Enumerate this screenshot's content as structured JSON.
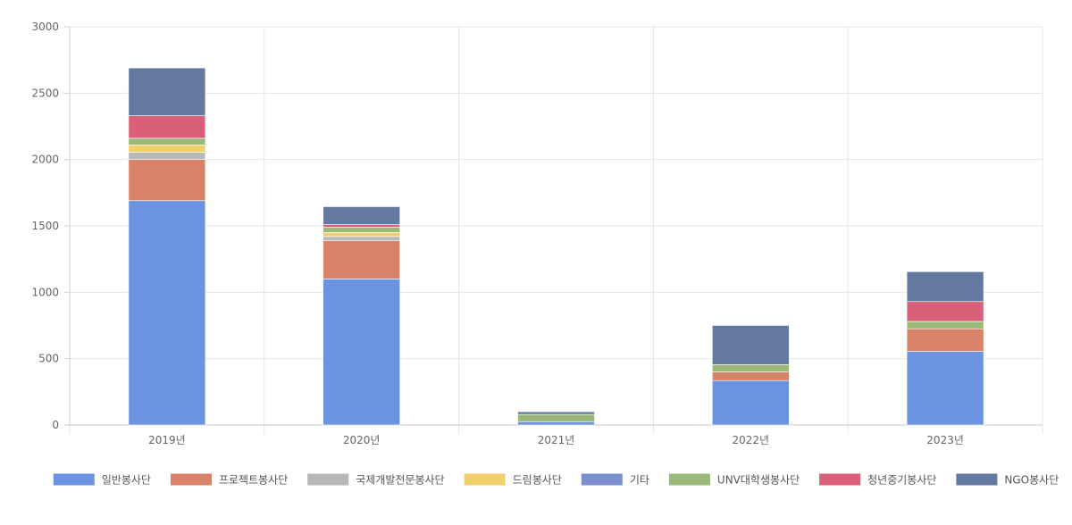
{
  "chart_data": {
    "type": "bar",
    "stacked": true,
    "categories": [
      "2019년",
      "2020년",
      "2021년",
      "2022년",
      "2023년"
    ],
    "ylim": [
      0,
      3000
    ],
    "yticks": [
      0,
      500,
      1000,
      1500,
      2000,
      2500,
      3000
    ],
    "grid": true,
    "legend_position": "bottom",
    "series": [
      {
        "name": "일반봉사단",
        "color": "#6b93df",
        "values": [
          1690,
          1100,
          25,
          335,
          555
        ]
      },
      {
        "name": "프로젝트봉사단",
        "color": "#d9826a",
        "values": [
          310,
          290,
          0,
          65,
          170
        ]
      },
      {
        "name": "국제개발전문봉사단",
        "color": "#b8b8b8",
        "values": [
          55,
          30,
          0,
          0,
          0
        ]
      },
      {
        "name": "드림봉사단",
        "color": "#f2cf6d",
        "values": [
          55,
          30,
          0,
          0,
          0
        ]
      },
      {
        "name": "기타",
        "color": "#7b8fcf",
        "values": [
          0,
          0,
          0,
          0,
          0
        ]
      },
      {
        "name": "UNV대학생봉사단",
        "color": "#9ab978",
        "values": [
          50,
          40,
          55,
          55,
          55
        ]
      },
      {
        "name": "청년중기봉사단",
        "color": "#d96078",
        "values": [
          170,
          20,
          0,
          0,
          150
        ]
      },
      {
        "name": "NGO봉사단",
        "color": "#64799f",
        "values": [
          360,
          135,
          20,
          295,
          225
        ]
      }
    ]
  }
}
